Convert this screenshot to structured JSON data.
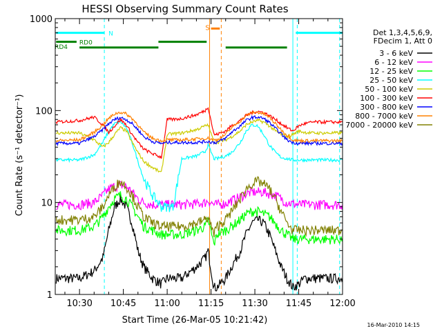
{
  "chart_data": {
    "type": "line",
    "title": "HESSI Observing Summary Count Rates",
    "xlabel": "Start Time (26-Mar-05 10:21:42)",
    "ylabel": "Count Rate (s⁻¹ detector⁻¹)",
    "xlim": [
      21.7,
      120.0
    ],
    "ylim": [
      1,
      1000
    ],
    "y_scale": "log",
    "x_ticks": [
      {
        "v": 30,
        "label": "10:30"
      },
      {
        "v": 45,
        "label": "10:45"
      },
      {
        "v": 60,
        "label": "11:00"
      },
      {
        "v": 75,
        "label": "11:15"
      },
      {
        "v": 90,
        "label": "11:30"
      },
      {
        "v": 105,
        "label": "11:45"
      },
      {
        "v": 120,
        "label": "12:00"
      }
    ],
    "y_ticks": [
      {
        "v": 1,
        "label": "1"
      },
      {
        "v": 10,
        "label": "10"
      },
      {
        "v": 100,
        "label": "100"
      },
      {
        "v": 1000,
        "label": "1000"
      }
    ],
    "legend_header": [
      "Det 1,3,4,5,6,9,",
      "FDecim 1, Att 0"
    ],
    "legend_position": "right",
    "footer_date": "16-Mar-2010 14:15",
    "series": [
      {
        "name": "3 - 6 keV",
        "color": "#000000",
        "x": [
          22,
          30,
          35,
          38,
          40,
          42,
          44,
          46,
          48,
          50,
          52,
          55,
          58,
          60,
          62,
          65,
          70,
          73,
          74,
          76,
          77,
          80,
          82,
          85,
          87,
          89,
          91,
          93,
          95,
          97,
          99,
          101,
          103,
          105,
          107,
          110,
          114,
          118,
          120
        ],
        "y": [
          1.5,
          1.5,
          1.8,
          2.5,
          5,
          9,
          11,
          9,
          6,
          3,
          2,
          1.5,
          1.3,
          1.5,
          1.5,
          1.5,
          2,
          2.5,
          3,
          1.2,
          1.2,
          1.5,
          2,
          3,
          4.5,
          6,
          6.5,
          6,
          4.5,
          3,
          2,
          1.5,
          1.2,
          1.3,
          1.5,
          1.5,
          1.5,
          1.5,
          1.5
        ]
      },
      {
        "name": "6 - 12 keV",
        "color": "#ff00ff",
        "x": [
          22,
          30,
          35,
          38,
          40,
          42,
          44,
          46,
          48,
          50,
          52,
          55,
          58,
          60,
          62,
          65,
          70,
          73,
          74,
          76,
          77,
          80,
          82,
          85,
          87,
          89,
          91,
          93,
          95,
          97,
          99,
          101,
          103,
          105,
          107,
          110,
          114,
          118,
          120
        ],
        "y": [
          9.5,
          9.5,
          10,
          12,
          14,
          15,
          15.5,
          15,
          13,
          11,
          10,
          9.5,
          9.5,
          9.5,
          9.5,
          9.5,
          9.7,
          10,
          10.5,
          9.5,
          9.5,
          9.8,
          10.5,
          11.5,
          12.5,
          13,
          13,
          13,
          12.5,
          12,
          11,
          10,
          9.7,
          9.5,
          9.5,
          9.5,
          9.5,
          9.5,
          9.5
        ]
      },
      {
        "name": "12 - 25 keV",
        "color": "#00ff00",
        "x": [
          22,
          30,
          35,
          38,
          40,
          42,
          44,
          46,
          48,
          50,
          52,
          55,
          58,
          60,
          62,
          65,
          70,
          73,
          74,
          76,
          77,
          80,
          82,
          85,
          87,
          89,
          91,
          93,
          95,
          97,
          99,
          101,
          103,
          105,
          107,
          110,
          114,
          118,
          120
        ],
        "y": [
          5,
          5,
          5.5,
          7,
          9,
          11,
          12,
          11,
          9,
          7,
          5.5,
          5,
          4.5,
          4.5,
          4.5,
          4.5,
          5,
          5.5,
          6.5,
          3.5,
          4.5,
          5,
          5.5,
          6.5,
          7.5,
          8,
          8,
          7.5,
          7,
          6,
          5,
          4.5,
          4,
          4,
          4,
          4,
          4,
          4,
          4
        ]
      },
      {
        "name": "25 - 50 keV",
        "color": "#00ffff",
        "x": [
          22,
          30,
          35,
          38,
          40,
          42,
          44,
          46,
          48,
          50,
          52,
          55,
          58,
          60,
          62,
          65,
          70,
          73,
          74,
          76,
          77,
          80,
          82,
          85,
          87,
          89,
          91,
          93,
          95,
          97,
          99,
          101,
          103,
          105,
          107,
          110,
          114,
          118,
          120
        ],
        "y": [
          29,
          29,
          33,
          45,
          60,
          72,
          76,
          65,
          45,
          28,
          18,
          12,
          9,
          9,
          9,
          30,
          32,
          36,
          42,
          30,
          30,
          32,
          35,
          45,
          60,
          70,
          68,
          55,
          42,
          35,
          31,
          30,
          29,
          29,
          29,
          29,
          29,
          29,
          29
        ]
      },
      {
        "name": "50 - 100 keV",
        "color": "#cccc00",
        "x": [
          22,
          30,
          35,
          38,
          40,
          42,
          44,
          46,
          48,
          50,
          52,
          55,
          58,
          60,
          62,
          65,
          70,
          73,
          74,
          76,
          77,
          80,
          82,
          85,
          87,
          89,
          91,
          93,
          95,
          97,
          99,
          101,
          103,
          105,
          107,
          110,
          114,
          118,
          120
        ],
        "y": [
          57,
          57,
          48,
          40,
          45,
          55,
          65,
          60,
          45,
          35,
          28,
          24,
          21,
          55,
          56,
          57,
          62,
          68,
          70,
          45,
          45,
          48,
          52,
          60,
          70,
          75,
          78,
          75,
          68,
          60,
          55,
          52,
          55,
          60,
          58,
          57,
          57,
          57,
          57
        ]
      },
      {
        "name": "100 - 300 keV",
        "color": "#ff0000",
        "x": [
          22,
          30,
          35,
          38,
          40,
          42,
          44,
          46,
          48,
          50,
          52,
          55,
          58,
          60,
          62,
          65,
          70,
          73,
          74,
          76,
          77,
          80,
          82,
          85,
          87,
          89,
          91,
          93,
          95,
          97,
          99,
          101,
          103,
          105,
          107,
          110,
          114,
          118,
          120
        ],
        "y": [
          75,
          78,
          85,
          70,
          58,
          68,
          80,
          70,
          55,
          45,
          38,
          34,
          31,
          80,
          80,
          82,
          90,
          100,
          110,
          55,
          55,
          60,
          68,
          78,
          88,
          95,
          98,
          95,
          88,
          80,
          72,
          65,
          60,
          68,
          72,
          75,
          75,
          75,
          75
        ]
      },
      {
        "name": "300 - 800 keV",
        "color": "#0000ff",
        "x": [
          22,
          30,
          35,
          38,
          40,
          42,
          44,
          46,
          48,
          50,
          52,
          55,
          58,
          60,
          62,
          65,
          70,
          73,
          74,
          76,
          77,
          80,
          82,
          85,
          87,
          89,
          91,
          93,
          95,
          97,
          99,
          101,
          103,
          105,
          107,
          110,
          114,
          118,
          120
        ],
        "y": [
          44,
          44,
          52,
          62,
          72,
          80,
          84,
          80,
          72,
          62,
          52,
          46,
          44,
          45,
          45,
          45,
          45,
          46,
          46,
          45,
          45,
          50,
          58,
          68,
          78,
          84,
          85,
          82,
          74,
          64,
          56,
          48,
          45,
          44,
          44,
          44,
          44,
          44,
          44
        ]
      },
      {
        "name": "800 - 7000 keV",
        "color": "#ff8000",
        "x": [
          22,
          30,
          35,
          38,
          40,
          42,
          44,
          46,
          48,
          50,
          52,
          55,
          58,
          60,
          62,
          65,
          70,
          73,
          74,
          76,
          77,
          80,
          82,
          85,
          87,
          89,
          91,
          93,
          95,
          97,
          99,
          101,
          103,
          105,
          107,
          110,
          114,
          118,
          120
        ],
        "y": [
          47,
          48,
          58,
          70,
          82,
          92,
          96,
          92,
          82,
          70,
          58,
          50,
          47,
          48,
          48,
          48,
          49,
          50,
          50,
          48,
          48,
          55,
          65,
          77,
          88,
          95,
          96,
          92,
          84,
          72,
          62,
          54,
          48,
          47,
          47,
          47,
          47,
          47,
          47
        ]
      },
      {
        "name": "7000 - 20000 keV",
        "color": "#808000",
        "x": [
          22,
          30,
          35,
          38,
          40,
          42,
          44,
          46,
          48,
          50,
          52,
          55,
          58,
          60,
          62,
          65,
          70,
          73,
          74,
          76,
          77,
          80,
          82,
          85,
          87,
          89,
          91,
          93,
          95,
          97,
          99,
          101,
          103,
          105,
          107,
          110,
          114,
          118,
          120
        ],
        "y": [
          6.5,
          6.5,
          7,
          9,
          12,
          15,
          17,
          15,
          12,
          9,
          7,
          6,
          5.5,
          5.5,
          5.5,
          5.5,
          6,
          6.5,
          7,
          4.5,
          5.5,
          6.5,
          8,
          11,
          14,
          16,
          17,
          16,
          14,
          11,
          8,
          6,
          5,
          5,
          5,
          5,
          5,
          5,
          5
        ]
      }
    ],
    "annotations": [
      {
        "label": "N",
        "color": "#00ffff",
        "level": 700,
        "segments": [
          [
            22,
            38.5
          ],
          [
            104,
            120
          ]
        ]
      },
      {
        "label": "RD0",
        "color": "#008000",
        "level": 560,
        "segments": [
          [
            22,
            29
          ],
          [
            57,
            73.5
          ]
        ]
      },
      {
        "label": "RD4",
        "color": "#008000",
        "level": 485,
        "segments": [
          [
            30,
            57
          ],
          [
            80,
            101
          ]
        ]
      },
      {
        "label": "S",
        "color": "#ff8000",
        "level": 780,
        "segments": [
          [
            75,
            78
          ]
        ]
      }
    ],
    "event_lines": [
      {
        "x": 38.5,
        "color": "#00ffff",
        "style": "dashed"
      },
      {
        "x": 103.0,
        "color": "#00ffff",
        "style": "solid"
      },
      {
        "x": 104.5,
        "color": "#00ffff",
        "style": "dashed"
      },
      {
        "x": 119.0,
        "color": "#00ffff",
        "style": "dashed"
      },
      {
        "x": 74.5,
        "color": "#ff8000",
        "style": "solid"
      },
      {
        "x": 78.5,
        "color": "#ff8000",
        "style": "dashed"
      }
    ]
  }
}
